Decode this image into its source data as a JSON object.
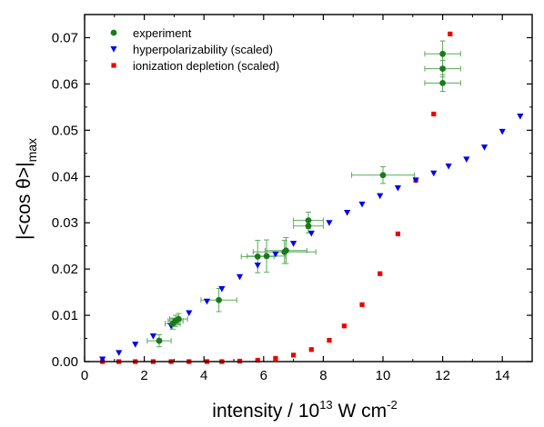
{
  "chart_data": {
    "type": "scatter",
    "xlabel": {
      "main": "intensity / 10",
      "sup": "13",
      "tail": " W cm",
      "sup2": "-2"
    },
    "ylabel": {
      "main": "|<cos θ>|",
      "sub": "max"
    },
    "xlim": [
      0,
      15
    ],
    "ylim": [
      0,
      0.075
    ],
    "xticks": [
      0,
      2,
      4,
      6,
      8,
      10,
      12,
      14
    ],
    "yticks": [
      0.0,
      0.01,
      0.02,
      0.03,
      0.04,
      0.05,
      0.06,
      0.07
    ],
    "xtick_labels": [
      "0",
      "2",
      "4",
      "6",
      "8",
      "10",
      "12",
      "14"
    ],
    "ytick_labels": [
      "0.00",
      "0.01",
      "0.02",
      "0.03",
      "0.04",
      "0.05",
      "0.06",
      "0.07"
    ],
    "grid": false,
    "legend_position": "top-left",
    "series": [
      {
        "name": "experiment",
        "marker": "circle",
        "color": "#1a7a1a",
        "points": [
          {
            "x": 2.5,
            "y": 0.0045,
            "xerr": 0.4,
            "yerr": 0.0013
          },
          {
            "x": 2.95,
            "y": 0.0082,
            "xerr": 0.25,
            "yerr": 0.0012
          },
          {
            "x": 3.05,
            "y": 0.0088,
            "xerr": 0.25,
            "yerr": 0.0012
          },
          {
            "x": 3.15,
            "y": 0.0092,
            "xerr": 0.3,
            "yerr": 0.0012
          },
          {
            "x": 4.5,
            "y": 0.0133,
            "xerr": 0.6,
            "yerr": 0.0025
          },
          {
            "x": 5.8,
            "y": 0.0227,
            "xerr": 0.55,
            "yerr": 0.0035
          },
          {
            "x": 6.1,
            "y": 0.0228,
            "xerr": 0.65,
            "yerr": 0.0035
          },
          {
            "x": 6.7,
            "y": 0.0237,
            "xerr": 1.05,
            "yerr": 0.0025
          },
          {
            "x": 6.75,
            "y": 0.024,
            "xerr": 0.7,
            "yerr": 0.0028
          },
          {
            "x": 7.5,
            "y": 0.0293,
            "xerr": 0.5,
            "yerr": 0.0015
          },
          {
            "x": 7.5,
            "y": 0.0305,
            "xerr": 0.5,
            "yerr": 0.0018
          },
          {
            "x": 10.0,
            "y": 0.0403,
            "xerr": 1.05,
            "yerr": 0.0018
          },
          {
            "x": 12.0,
            "y": 0.0602,
            "xerr": 0.6,
            "yerr": 0.0018
          },
          {
            "x": 12.0,
            "y": 0.0633,
            "xerr": 0.6,
            "yerr": 0.0018
          },
          {
            "x": 12.0,
            "y": 0.0665,
            "xerr": 0.6,
            "yerr": 0.0028
          }
        ]
      },
      {
        "name": "hyperpolarizability (scaled)",
        "marker": "triangle-down",
        "color": "#0000ee",
        "points": [
          {
            "x": 0.6,
            "y": 0.0005
          },
          {
            "x": 1.15,
            "y": 0.0019
          },
          {
            "x": 1.7,
            "y": 0.0037
          },
          {
            "x": 2.3,
            "y": 0.0055
          },
          {
            "x": 2.9,
            "y": 0.0077
          },
          {
            "x": 3.5,
            "y": 0.0105
          },
          {
            "x": 4.1,
            "y": 0.013
          },
          {
            "x": 4.6,
            "y": 0.0157
          },
          {
            "x": 5.2,
            "y": 0.0183
          },
          {
            "x": 5.8,
            "y": 0.0208
          },
          {
            "x": 6.4,
            "y": 0.0232
          },
          {
            "x": 7.0,
            "y": 0.0255
          },
          {
            "x": 7.6,
            "y": 0.0277
          },
          {
            "x": 8.2,
            "y": 0.03
          },
          {
            "x": 8.8,
            "y": 0.0322
          },
          {
            "x": 9.3,
            "y": 0.034
          },
          {
            "x": 9.9,
            "y": 0.0358
          },
          {
            "x": 10.5,
            "y": 0.0375
          },
          {
            "x": 11.1,
            "y": 0.0392
          },
          {
            "x": 11.7,
            "y": 0.0407
          },
          {
            "x": 12.2,
            "y": 0.0422
          },
          {
            "x": 12.8,
            "y": 0.0437
          },
          {
            "x": 13.4,
            "y": 0.0463
          },
          {
            "x": 14.0,
            "y": 0.0497
          },
          {
            "x": 14.6,
            "y": 0.053
          }
        ]
      },
      {
        "name": "ionization depletion (scaled)",
        "marker": "square",
        "color": "#ee0000",
        "points": [
          {
            "x": 0.6,
            "y": 0.0
          },
          {
            "x": 1.15,
            "y": 0.0
          },
          {
            "x": 1.7,
            "y": 0.0
          },
          {
            "x": 2.3,
            "y": 0.0
          },
          {
            "x": 2.9,
            "y": 0.0
          },
          {
            "x": 3.5,
            "y": 0.0
          },
          {
            "x": 4.1,
            "y": 0.0
          },
          {
            "x": 4.6,
            "y": 0.0
          },
          {
            "x": 5.2,
            "y": 0.0001
          },
          {
            "x": 5.8,
            "y": 0.0003
          },
          {
            "x": 6.4,
            "y": 0.0007
          },
          {
            "x": 7.0,
            "y": 0.0014
          },
          {
            "x": 7.6,
            "y": 0.0026
          },
          {
            "x": 8.2,
            "y": 0.0046
          },
          {
            "x": 8.7,
            "y": 0.0077
          },
          {
            "x": 9.3,
            "y": 0.0123
          },
          {
            "x": 9.9,
            "y": 0.019
          },
          {
            "x": 10.5,
            "y": 0.0276
          },
          {
            "x": 11.1,
            "y": 0.0392
          },
          {
            "x": 11.7,
            "y": 0.0535
          },
          {
            "x": 12.25,
            "y": 0.0708
          }
        ]
      }
    ]
  }
}
